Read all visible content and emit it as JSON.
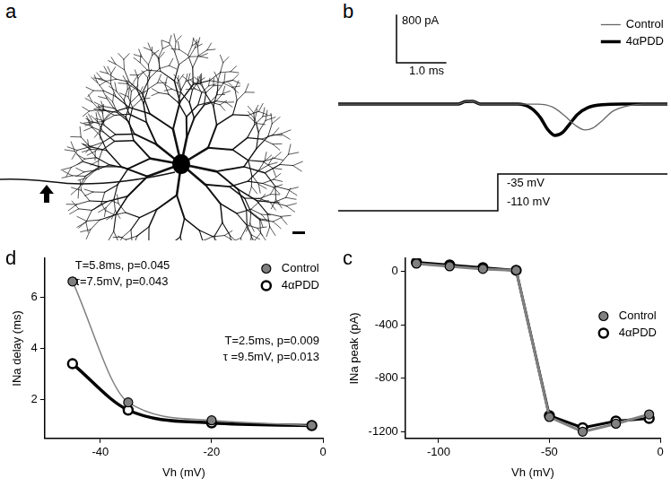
{
  "image": {
    "panel_label": "a"
  },
  "chart_data": [
    {
      "panel_label": "b",
      "type": "line",
      "tick_labels": false,
      "legend": "top-right",
      "series": [
        {
          "name": "Control",
          "color": "#666666",
          "x": [
            0,
            2.4,
            2.55,
            2.7,
            2.85,
            4.0,
            4.3,
            4.55,
            4.75,
            4.95,
            5.1,
            5.3,
            5.5,
            5.8,
            6.1,
            6.6
          ],
          "values": [
            0,
            0,
            40,
            45,
            0,
            0,
            -50,
            -200,
            -350,
            -430,
            -400,
            -270,
            -120,
            -30,
            0,
            0
          ]
        },
        {
          "name": "4αPDD",
          "color": "#000000",
          "x": [
            0,
            2.4,
            2.55,
            2.7,
            2.85,
            3.6,
            3.85,
            4.05,
            4.2,
            4.35,
            4.5,
            4.65,
            4.8,
            5.0,
            5.3,
            5.7,
            6.6
          ],
          "values": [
            0,
            0,
            40,
            45,
            0,
            0,
            -60,
            -220,
            -420,
            -520,
            -470,
            -320,
            -170,
            -60,
            -10,
            0,
            0
          ]
        }
      ],
      "scale_bars": {
        "y": {
          "value": 800,
          "label": "800 pA"
        },
        "x": {
          "value": 1.0,
          "label": "1.0 ms"
        }
      },
      "protocol": {
        "color": "#000000",
        "x": [
          0,
          3.2,
          3.2,
          6.6
        ],
        "values": [
          -110,
          -110,
          -35,
          -35
        ],
        "annotations": [
          {
            "value": -35,
            "label": "-35 mV"
          },
          {
            "value": -110,
            "label": "-110 mV"
          }
        ]
      }
    },
    {
      "panel_label": "d",
      "type": "line",
      "x_label": "Vh (mV)",
      "y_label": "INa delay (ms)",
      "xlim": [
        -50,
        0
      ],
      "xticks": [
        -40,
        -20,
        0
      ],
      "ylim": [
        0.5,
        7.5
      ],
      "yticks": [
        2,
        4,
        6
      ],
      "grid": false,
      "legend": "top-right",
      "line_style": "smooth",
      "x": [
        -45,
        -35,
        -20,
        -2
      ],
      "series": [
        {
          "name": "Control",
          "color": "#808080",
          "marker": "circle",
          "values": [
            6.6,
            1.9,
            1.2,
            1.0
          ]
        },
        {
          "name": "4αPDD",
          "color": "#000000",
          "marker": "open_circle",
          "values": [
            3.4,
            1.6,
            1.1,
            1.0
          ]
        }
      ],
      "annotations": [
        "T=5.8ms, p=0.045",
        "τ=7.5mV, p=0.043",
        "T=2.5ms, p=0.009",
        "τ =9.5mV, p=0.013"
      ]
    },
    {
      "panel_label": "c",
      "type": "line",
      "x_label": "Vh (mV)",
      "y_label": "INa peak (pA)",
      "xlim": [
        -115,
        0
      ],
      "xticks": [
        -100,
        -50,
        0
      ],
      "ylim": [
        -1250,
        100
      ],
      "yticks": [
        -1200,
        -800,
        -400,
        0
      ],
      "grid": false,
      "legend": "top-right",
      "line_style": "solid",
      "x": [
        -110,
        -95,
        -80,
        -65,
        -50,
        -35,
        -20,
        -5
      ],
      "series": [
        {
          "name": "Control",
          "color": "#808080",
          "marker": "circle",
          "values": [
            60,
            40,
            20,
            10,
            -1090,
            -1200,
            -1140,
            -1070
          ]
        },
        {
          "name": "4αPDD",
          "color": "#000000",
          "marker": "open_circle",
          "values": [
            70,
            50,
            30,
            10,
            -1080,
            -1170,
            -1120,
            -1100
          ]
        }
      ]
    }
  ]
}
